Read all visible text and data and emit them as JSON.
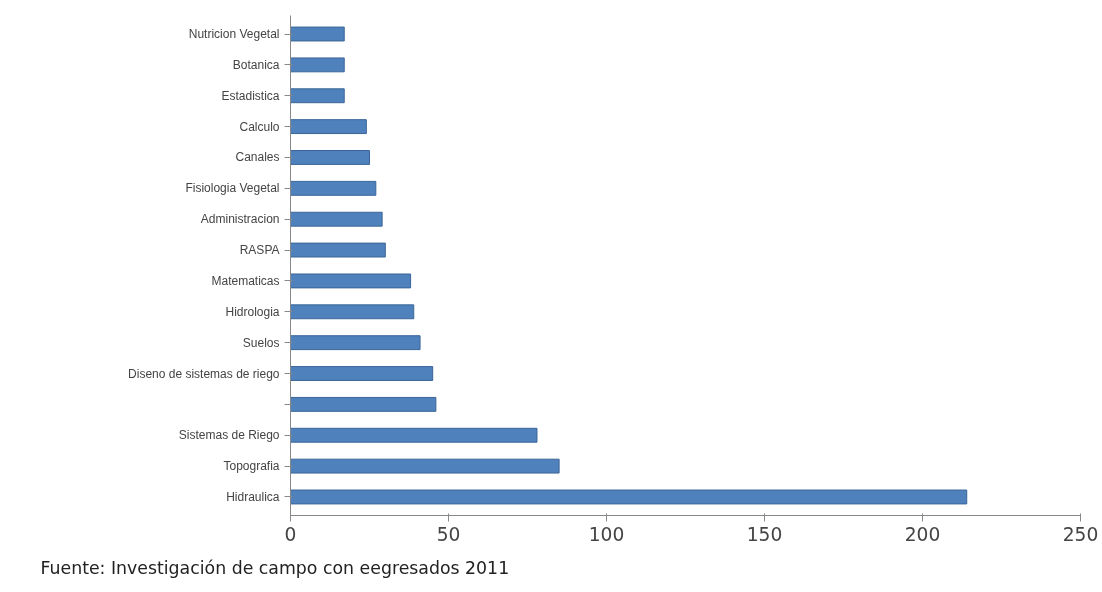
{
  "chart_data": {
    "type": "bar",
    "orientation": "horizontal",
    "categories": [
      "Nutricion Vegetal",
      "Botanica",
      "Estadistica",
      "Calculo",
      "Canales",
      "Fisiologia Vegetal",
      "Administracion",
      "RASPA",
      "Matematicas",
      "Hidrologia",
      "Suelos",
      "Diseno de sistemas de riego",
      null,
      "Sistemas de Riego",
      "Topografia",
      "Hidraulica"
    ],
    "values": [
      17,
      17,
      17,
      24,
      25,
      27,
      29,
      30,
      38,
      39,
      41,
      45,
      46,
      78,
      85,
      214
    ],
    "color": "#4f81bd",
    "xlim": [
      0,
      250
    ],
    "xticks": [
      0,
      50,
      100,
      150,
      200,
      250
    ],
    "grid": false,
    "annotations": [
      "Fuente: Investigación de campo con eegresados 2011"
    ]
  }
}
